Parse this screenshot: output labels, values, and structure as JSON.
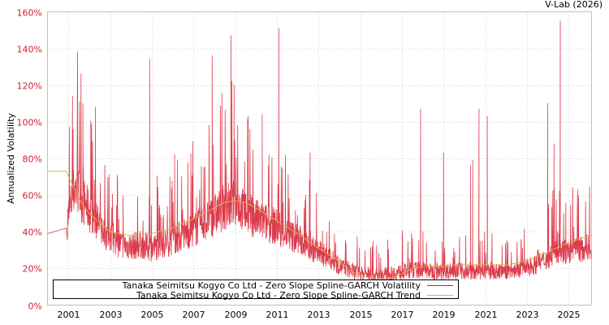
{
  "credit": "V-Lab (2026)",
  "legend": {
    "volatility_label": "Tanaka Seimitsu Kogyo Co Ltd - Zero Slope Spline-GARCH Volatility",
    "trend_label": "Tanaka Seimitsu Kogyo Co Ltd - Zero Slope Spline-GARCH Trend"
  },
  "colors": {
    "volatility": "#d7192d",
    "trend": "#d9b44a",
    "ytick": "#cc2233",
    "grid": "#cccccc",
    "frame": "#c0c0c0"
  },
  "chart_data": {
    "type": "line",
    "title": "",
    "xlabel": "",
    "ylabel": "Annualized Volatility",
    "ylim": [
      0,
      160
    ],
    "xlim": [
      2000.0,
      2026.1
    ],
    "grid": true,
    "legend_position": "bottom-left inside",
    "yticks": [
      "0%",
      "20%",
      "40%",
      "60%",
      "80%",
      "100%",
      "120%",
      "140%",
      "160%"
    ],
    "xticks": [
      "2001",
      "2003",
      "2005",
      "2007",
      "2009",
      "2011",
      "2013",
      "2015",
      "2017",
      "2019",
      "2021",
      "2023",
      "2025"
    ],
    "series": [
      {
        "name": "Tanaka Seimitsu Kogyo Co Ltd - Zero Slope Spline-GARCH Volatility",
        "x": [
          2000.0,
          2000.9,
          2001.0,
          2001.3,
          2001.6,
          2002.0,
          2002.5,
          2003.0,
          2003.5,
          2004.0,
          2004.5,
          2005.0,
          2005.5,
          2006.0,
          2006.5,
          2007.0,
          2007.5,
          2008.0,
          2008.5,
          2009.0,
          2009.5,
          2010.0,
          2010.5,
          2011.0,
          2011.5,
          2012.0,
          2012.5,
          2013.0,
          2013.5,
          2014.0,
          2014.5,
          2015.0,
          2015.5,
          2016.0,
          2016.5,
          2017.0,
          2017.5,
          2018.0,
          2018.5,
          2019.0,
          2019.5,
          2020.0,
          2020.5,
          2021.0,
          2021.5,
          2022.0,
          2022.5,
          2023.0,
          2023.5,
          2024.0,
          2024.5,
          2025.0,
          2025.5,
          2026.0
        ],
        "values": [
          39,
          42,
          45,
          60,
          55,
          48,
          40,
          34,
          31,
          30,
          31,
          29,
          31,
          33,
          36,
          38,
          42,
          46,
          50,
          52,
          48,
          44,
          42,
          40,
          36,
          34,
          30,
          27,
          24,
          20,
          18,
          16,
          15,
          15,
          16,
          17,
          18,
          18,
          17,
          17,
          18,
          17,
          17,
          17,
          17,
          17,
          18,
          19,
          21,
          24,
          28,
          27,
          28,
          30
        ],
        "spikes": [
          {
            "x": 2001.2,
            "y": 114
          },
          {
            "x": 2001.7,
            "y": 110
          },
          {
            "x": 2002.3,
            "y": 108
          },
          {
            "x": 2004.9,
            "y": 134
          },
          {
            "x": 2006.1,
            "y": 82
          },
          {
            "x": 2007.5,
            "y": 75
          },
          {
            "x": 2007.9,
            "y": 136
          },
          {
            "x": 2008.8,
            "y": 147
          },
          {
            "x": 2008.95,
            "y": 120
          },
          {
            "x": 2010.3,
            "y": 104
          },
          {
            "x": 2011.1,
            "y": 151
          },
          {
            "x": 2012.6,
            "y": 83
          },
          {
            "x": 2017.9,
            "y": 107
          },
          {
            "x": 2019.0,
            "y": 83
          },
          {
            "x": 2020.3,
            "y": 76
          },
          {
            "x": 2020.4,
            "y": 79
          },
          {
            "x": 2020.7,
            "y": 107
          },
          {
            "x": 2021.1,
            "y": 103
          },
          {
            "x": 2024.0,
            "y": 110
          },
          {
            "x": 2024.6,
            "y": 155
          },
          {
            "x": 2024.3,
            "y": 88
          },
          {
            "x": 2025.2,
            "y": 64
          }
        ]
      },
      {
        "name": "Tanaka Seimitsu Kogyo Co Ltd - Zero Slope Spline-GARCH Trend",
        "x": [
          2000.0,
          2000.9,
          2001.5,
          2002.0,
          2002.5,
          2003.0,
          2004.0,
          2005.0,
          2006.0,
          2007.0,
          2008.0,
          2008.5,
          2009.0,
          2009.5,
          2010.0,
          2011.0,
          2012.0,
          2013.0,
          2014.0,
          2014.5,
          2015.0,
          2015.5,
          2016.0,
          2016.5,
          2017.0,
          2017.5,
          2018.0,
          2019.0,
          2020.0,
          2021.0,
          2022.0,
          2023.0,
          2024.0,
          2025.0,
          2026.0
        ],
        "values": [
          73,
          73,
          58,
          50,
          45,
          40,
          38,
          39,
          42,
          47,
          53,
          56,
          57,
          56,
          53,
          46,
          39,
          31,
          24,
          19,
          16,
          15,
          14,
          15,
          17,
          20,
          21,
          21,
          22,
          22,
          22,
          24,
          29,
          34,
          38
        ]
      }
    ]
  }
}
